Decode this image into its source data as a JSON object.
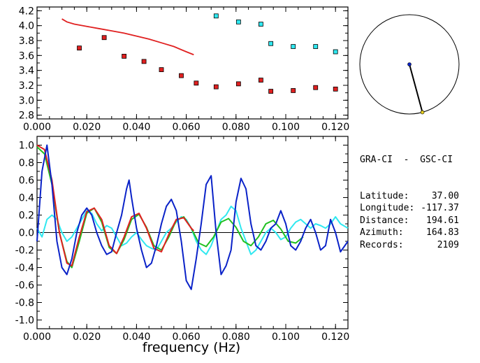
{
  "station_pair": "GRA-CI  -  GSC-CI",
  "info": [
    {
      "key": "Latitude:",
      "value": "37.00"
    },
    {
      "key": "Longitude:",
      "value": "-117.37"
    },
    {
      "key": "Distance:",
      "value": "194.61"
    },
    {
      "key": "Azimuth:",
      "value": "164.83"
    },
    {
      "key": "Records:",
      "value": "2109"
    }
  ],
  "azimuth_deg": 164.83,
  "colors": {
    "red": "#e02020",
    "blue": "#0a22c8",
    "green": "#20c020",
    "cyan": "#30e8f0",
    "axis": "#000000"
  },
  "chart_data": [
    {
      "type": "scatter",
      "xlim": [
        0.0,
        0.125
      ],
      "ylim": [
        2.75,
        4.25
      ],
      "xticks": [
        "0.000",
        "0.020",
        "0.040",
        "0.060",
        "0.080",
        "0.100",
        "0.120"
      ],
      "yticks": [
        "2.8",
        "3.0",
        "3.2",
        "3.4",
        "3.6",
        "3.8",
        "4.0",
        "4.2"
      ],
      "series": [
        {
          "color": "red",
          "kind": "marker",
          "x": [
            0.017,
            0.027,
            0.035,
            0.043,
            0.05,
            0.058,
            0.064,
            0.072,
            0.081,
            0.09,
            0.094,
            0.103,
            0.112,
            0.12
          ],
          "y": [
            3.7,
            3.84,
            3.59,
            3.52,
            3.41,
            3.33,
            3.23,
            3.18,
            3.22,
            3.27,
            3.12,
            3.13,
            3.17,
            3.15
          ]
        },
        {
          "color": "cyan",
          "kind": "marker",
          "x": [
            0.072,
            0.081,
            0.09,
            0.094,
            0.103,
            0.112,
            0.12
          ],
          "y": [
            4.13,
            4.05,
            4.02,
            3.76,
            3.72,
            3.72,
            3.65
          ]
        },
        {
          "color": "red",
          "kind": "line",
          "x": [
            0.01,
            0.012,
            0.015,
            0.02,
            0.025,
            0.03,
            0.035,
            0.04,
            0.045,
            0.05,
            0.055,
            0.06,
            0.063
          ],
          "y": [
            4.09,
            4.05,
            4.02,
            3.99,
            3.96,
            3.93,
            3.9,
            3.86,
            3.82,
            3.77,
            3.72,
            3.65,
            3.61
          ]
        }
      ]
    },
    {
      "type": "line",
      "xlabel": "frequency  (Hz)",
      "xlim": [
        0.0,
        0.125
      ],
      "ylim": [
        -1.1,
        1.1
      ],
      "xticks": [
        "0.000",
        "0.020",
        "0.040",
        "0.060",
        "0.080",
        "0.100",
        "0.120"
      ],
      "yticks": [
        "1.0",
        "0.8",
        "0.6",
        "0.4",
        "0.2",
        "0.0",
        "-0.2",
        "-0.4",
        "-0.6",
        "-0.8",
        "-1.0"
      ],
      "series": [
        {
          "color": "red",
          "x": [
            0.0,
            0.003,
            0.006,
            0.009,
            0.012,
            0.014,
            0.017,
            0.02,
            0.023,
            0.026,
            0.029,
            0.032,
            0.035,
            0.038,
            0.041,
            0.044,
            0.047,
            0.05,
            0.053,
            0.056,
            0.059,
            0.062,
            0.063
          ],
          "y": [
            1.0,
            0.95,
            0.6,
            0.0,
            -0.35,
            -0.38,
            -0.05,
            0.24,
            0.28,
            0.15,
            -0.15,
            -0.24,
            -0.05,
            0.18,
            0.22,
            0.05,
            -0.18,
            -0.22,
            -0.02,
            0.15,
            0.17,
            0.05,
            0.02
          ]
        },
        {
          "color": "green",
          "x": [
            0.0,
            0.003,
            0.006,
            0.009,
            0.012,
            0.014,
            0.017,
            0.02,
            0.023,
            0.026,
            0.029,
            0.032,
            0.035,
            0.038,
            0.041,
            0.044,
            0.047,
            0.05,
            0.053,
            0.056,
            0.059,
            0.062,
            0.065,
            0.068,
            0.071,
            0.074,
            0.077,
            0.08,
            0.083,
            0.086,
            0.089,
            0.092,
            0.095,
            0.098,
            0.101,
            0.104,
            0.107
          ],
          "y": [
            0.98,
            0.9,
            0.55,
            0.0,
            -0.33,
            -0.4,
            -0.1,
            0.22,
            0.28,
            0.12,
            -0.17,
            -0.24,
            -0.08,
            0.15,
            0.21,
            0.06,
            -0.15,
            -0.2,
            -0.05,
            0.14,
            0.18,
            0.05,
            -0.12,
            -0.16,
            -0.05,
            0.12,
            0.16,
            0.06,
            -0.1,
            -0.15,
            -0.05,
            0.1,
            0.14,
            0.04,
            -0.1,
            -0.12,
            -0.05
          ]
        },
        {
          "color": "blue",
          "x": [
            0.0,
            0.002,
            0.004,
            0.006,
            0.008,
            0.01,
            0.012,
            0.014,
            0.016,
            0.018,
            0.02,
            0.022,
            0.024,
            0.026,
            0.028,
            0.03,
            0.032,
            0.034,
            0.036,
            0.037,
            0.038,
            0.04,
            0.042,
            0.044,
            0.046,
            0.048,
            0.05,
            0.052,
            0.054,
            0.056,
            0.058,
            0.06,
            0.062,
            0.064,
            0.066,
            0.068,
            0.07,
            0.072,
            0.074,
            0.076,
            0.078,
            0.08,
            0.082,
            0.084,
            0.086,
            0.088,
            0.09,
            0.092,
            0.094,
            0.096,
            0.098,
            0.1,
            0.102,
            0.104,
            0.106,
            0.108,
            0.11,
            0.112,
            0.114,
            0.116,
            0.118,
            0.12,
            0.122,
            0.125
          ],
          "y": [
            -0.1,
            0.7,
            1.0,
            0.55,
            -0.1,
            -0.4,
            -0.48,
            -0.3,
            0.0,
            0.2,
            0.28,
            0.2,
            0.0,
            -0.15,
            -0.25,
            -0.22,
            0.0,
            0.2,
            0.5,
            0.6,
            0.4,
            0.05,
            -0.2,
            -0.4,
            -0.35,
            -0.15,
            0.1,
            0.3,
            0.38,
            0.25,
            -0.1,
            -0.55,
            -0.65,
            -0.3,
            0.1,
            0.55,
            0.65,
            0.0,
            -0.48,
            -0.38,
            -0.2,
            0.35,
            0.62,
            0.5,
            0.1,
            -0.15,
            -0.2,
            -0.1,
            0.05,
            0.1,
            0.25,
            0.1,
            -0.15,
            -0.2,
            -0.1,
            0.05,
            0.15,
            0.0,
            -0.2,
            -0.15,
            0.15,
            0.0,
            -0.22,
            -0.1
          ]
        },
        {
          "color": "cyan",
          "x": [
            0.0,
            0.002,
            0.004,
            0.006,
            0.008,
            0.01,
            0.012,
            0.014,
            0.016,
            0.018,
            0.02,
            0.022,
            0.024,
            0.026,
            0.028,
            0.03,
            0.032,
            0.034,
            0.036,
            0.038,
            0.04,
            0.042,
            0.044,
            0.046,
            0.048,
            0.05,
            0.052,
            0.054,
            0.056,
            0.058,
            0.06,
            0.062,
            0.064,
            0.066,
            0.068,
            0.07,
            0.072,
            0.074,
            0.076,
            0.078,
            0.08,
            0.082,
            0.084,
            0.086,
            0.088,
            0.09,
            0.092,
            0.094,
            0.096,
            0.098,
            0.1,
            0.102,
            0.104,
            0.106,
            0.108,
            0.11,
            0.112,
            0.114,
            0.116,
            0.118,
            0.12,
            0.122,
            0.125
          ],
          "y": [
            0.05,
            -0.05,
            0.15,
            0.2,
            0.15,
            0.0,
            -0.1,
            -0.05,
            0.05,
            0.15,
            0.25,
            0.22,
            0.1,
            0.02,
            0.08,
            0.05,
            -0.05,
            -0.15,
            -0.12,
            -0.05,
            0.0,
            -0.08,
            -0.15,
            -0.18,
            -0.2,
            -0.1,
            0.0,
            0.05,
            0.12,
            0.18,
            0.15,
            0.05,
            -0.1,
            -0.2,
            -0.25,
            -0.15,
            0.0,
            0.15,
            0.2,
            0.3,
            0.25,
            0.05,
            -0.1,
            -0.25,
            -0.2,
            -0.1,
            0.0,
            0.05,
            0.0,
            -0.08,
            -0.05,
            0.05,
            0.12,
            0.15,
            0.1,
            0.05,
            0.1,
            0.08,
            0.05,
            0.1,
            0.18,
            0.1,
            0.05
          ]
        }
      ]
    }
  ]
}
